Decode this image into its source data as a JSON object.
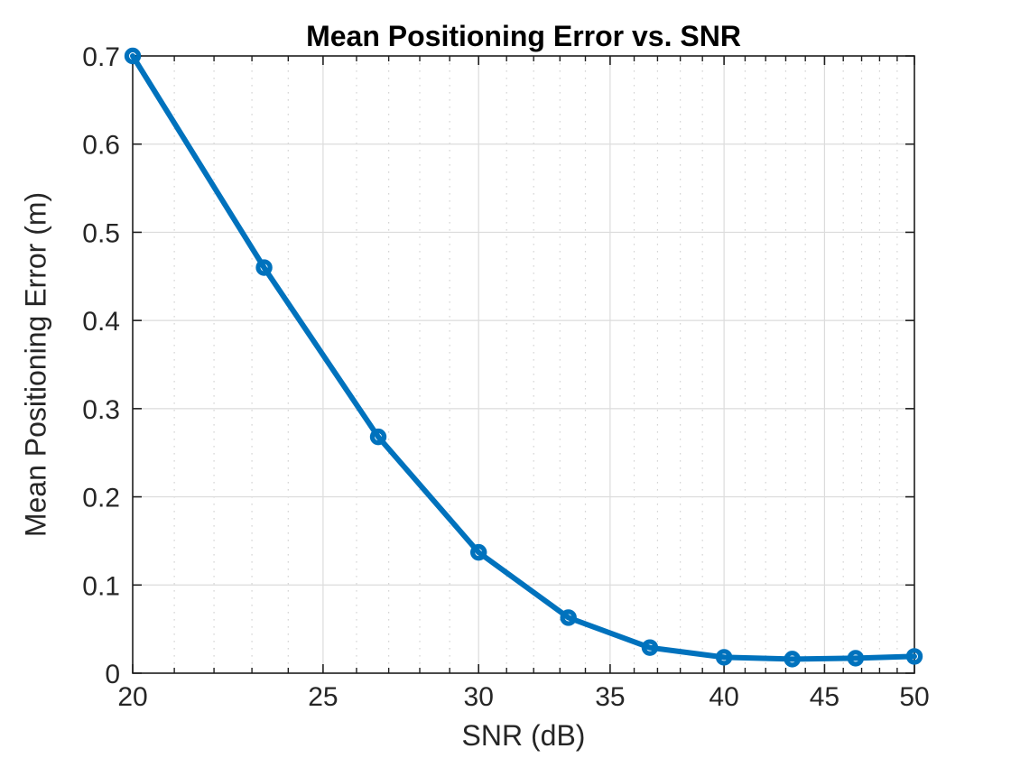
{
  "chart_data": {
    "type": "line",
    "title": "Mean Positioning Error vs. SNR",
    "xlabel": "SNR (dB)",
    "ylabel": "Mean Positioning Error (m)",
    "x_scale": "log",
    "y_scale": "linear",
    "x": [
      20,
      23.33,
      26.67,
      30,
      33.33,
      36.67,
      40,
      43.33,
      46.67,
      50
    ],
    "y": [
      0.7,
      0.46,
      0.268,
      0.137,
      0.063,
      0.029,
      0.018,
      0.016,
      0.017,
      0.019
    ],
    "xlim": [
      20,
      50
    ],
    "ylim": [
      0,
      0.7
    ],
    "x_ticks": [
      20,
      25,
      30,
      35,
      40,
      45,
      50
    ],
    "x_tick_labels": [
      "20",
      "25",
      "30",
      "35",
      "40",
      "45",
      "50"
    ],
    "y_ticks": [
      0,
      0.1,
      0.2,
      0.3,
      0.4,
      0.5,
      0.6,
      0.7
    ],
    "y_tick_labels": [
      "0",
      "0.1",
      "0.2",
      "0.3",
      "0.4",
      "0.5",
      "0.6",
      "0.7"
    ],
    "x_minor_ticks": [
      21,
      22,
      23,
      24,
      26,
      27,
      28,
      29,
      31,
      32,
      33,
      34,
      36,
      37,
      38,
      39,
      41,
      42,
      43,
      44,
      46,
      47,
      48,
      49
    ],
    "grid": true,
    "x_minor_grid": true,
    "y_minor_grid": false,
    "legend": null,
    "marker": "circle",
    "colors": {
      "line": "#0072bd",
      "major_grid": "#dcdcdc",
      "minor_grid": "#d4d4d4",
      "axis": "#1f1f1f",
      "tick_label": "#262626",
      "title": "#000000"
    }
  }
}
